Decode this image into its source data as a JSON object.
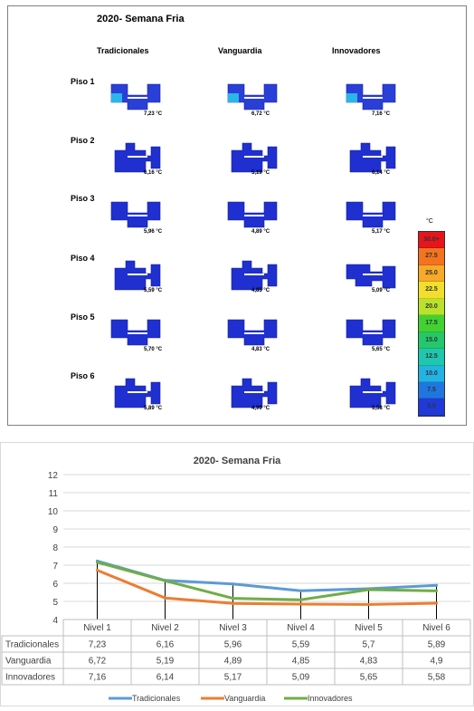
{
  "panel": {
    "title": "2020- Semana Fria",
    "columns": [
      "Tradicionales",
      "Vanguardia",
      "Innovadores"
    ],
    "rows": [
      "Piso 1",
      "Piso 2",
      "Piso 3",
      "Piso 4",
      "Piso 5",
      "Piso 6"
    ],
    "temps": [
      [
        "7,23 °C",
        "6,72 °C",
        "7,16 °C"
      ],
      [
        "6,16 °C",
        "5,19 °C",
        "6,14 °C"
      ],
      [
        "5,96 °C",
        "4,89 °C",
        "5,17 °C"
      ],
      [
        "5,59 °C",
        "4,85 °C",
        "5,09 °C"
      ],
      [
        "5,70 °C",
        "4,83 °C",
        "5,65 °C"
      ],
      [
        "5,89 °C",
        "4,90 °C",
        "5,58 °C"
      ]
    ],
    "legend_unit": "°C",
    "legend_labels": [
      "30.0+",
      "27.5",
      "25.0",
      "22.5",
      "20.0",
      "17.5",
      "15.0",
      "12.5",
      "10.0",
      "7.5",
      "5.0"
    ],
    "legend_colors": [
      "#e8141b",
      "#f4731f",
      "#f7a928",
      "#f2df2b",
      "#b9e22a",
      "#41d232",
      "#23c86a",
      "#1fc6b0",
      "#22b3e3",
      "#1f76e0",
      "#1f3ad8"
    ]
  },
  "chart_data": {
    "type": "line",
    "title": "2020- Semana Fria",
    "categories": [
      "Nivel 1",
      "Nivel 2",
      "Nivel 3",
      "Nivel 4",
      "Nivel 5",
      "Nivel 6"
    ],
    "ylim": [
      4,
      12
    ],
    "yticks": [
      "4",
      "5",
      "6",
      "7",
      "8",
      "9",
      "10",
      "11",
      "12"
    ],
    "grid": true,
    "legend_position": "bottom",
    "series": [
      {
        "name": "Tradicionales",
        "color": "#5b9bd5",
        "values": [
          7.23,
          6.16,
          5.96,
          5.59,
          5.7,
          5.89
        ],
        "table": [
          "7,23",
          "6,16",
          "5,96",
          "5,59",
          "5,7",
          "5,89"
        ]
      },
      {
        "name": "Vanguardia",
        "color": "#ed7d31",
        "values": [
          6.72,
          5.19,
          4.89,
          4.85,
          4.83,
          4.9
        ],
        "table": [
          "6,72",
          "5,19",
          "4,89",
          "4,85",
          "4,83",
          "4,9"
        ]
      },
      {
        "name": "Innovadores",
        "color": "#70ad47",
        "values": [
          7.16,
          6.14,
          5.17,
          5.09,
          5.65,
          5.58
        ],
        "table": [
          "7,16",
          "6,14",
          "5,17",
          "5,09",
          "5,65",
          "5,58"
        ]
      }
    ]
  }
}
